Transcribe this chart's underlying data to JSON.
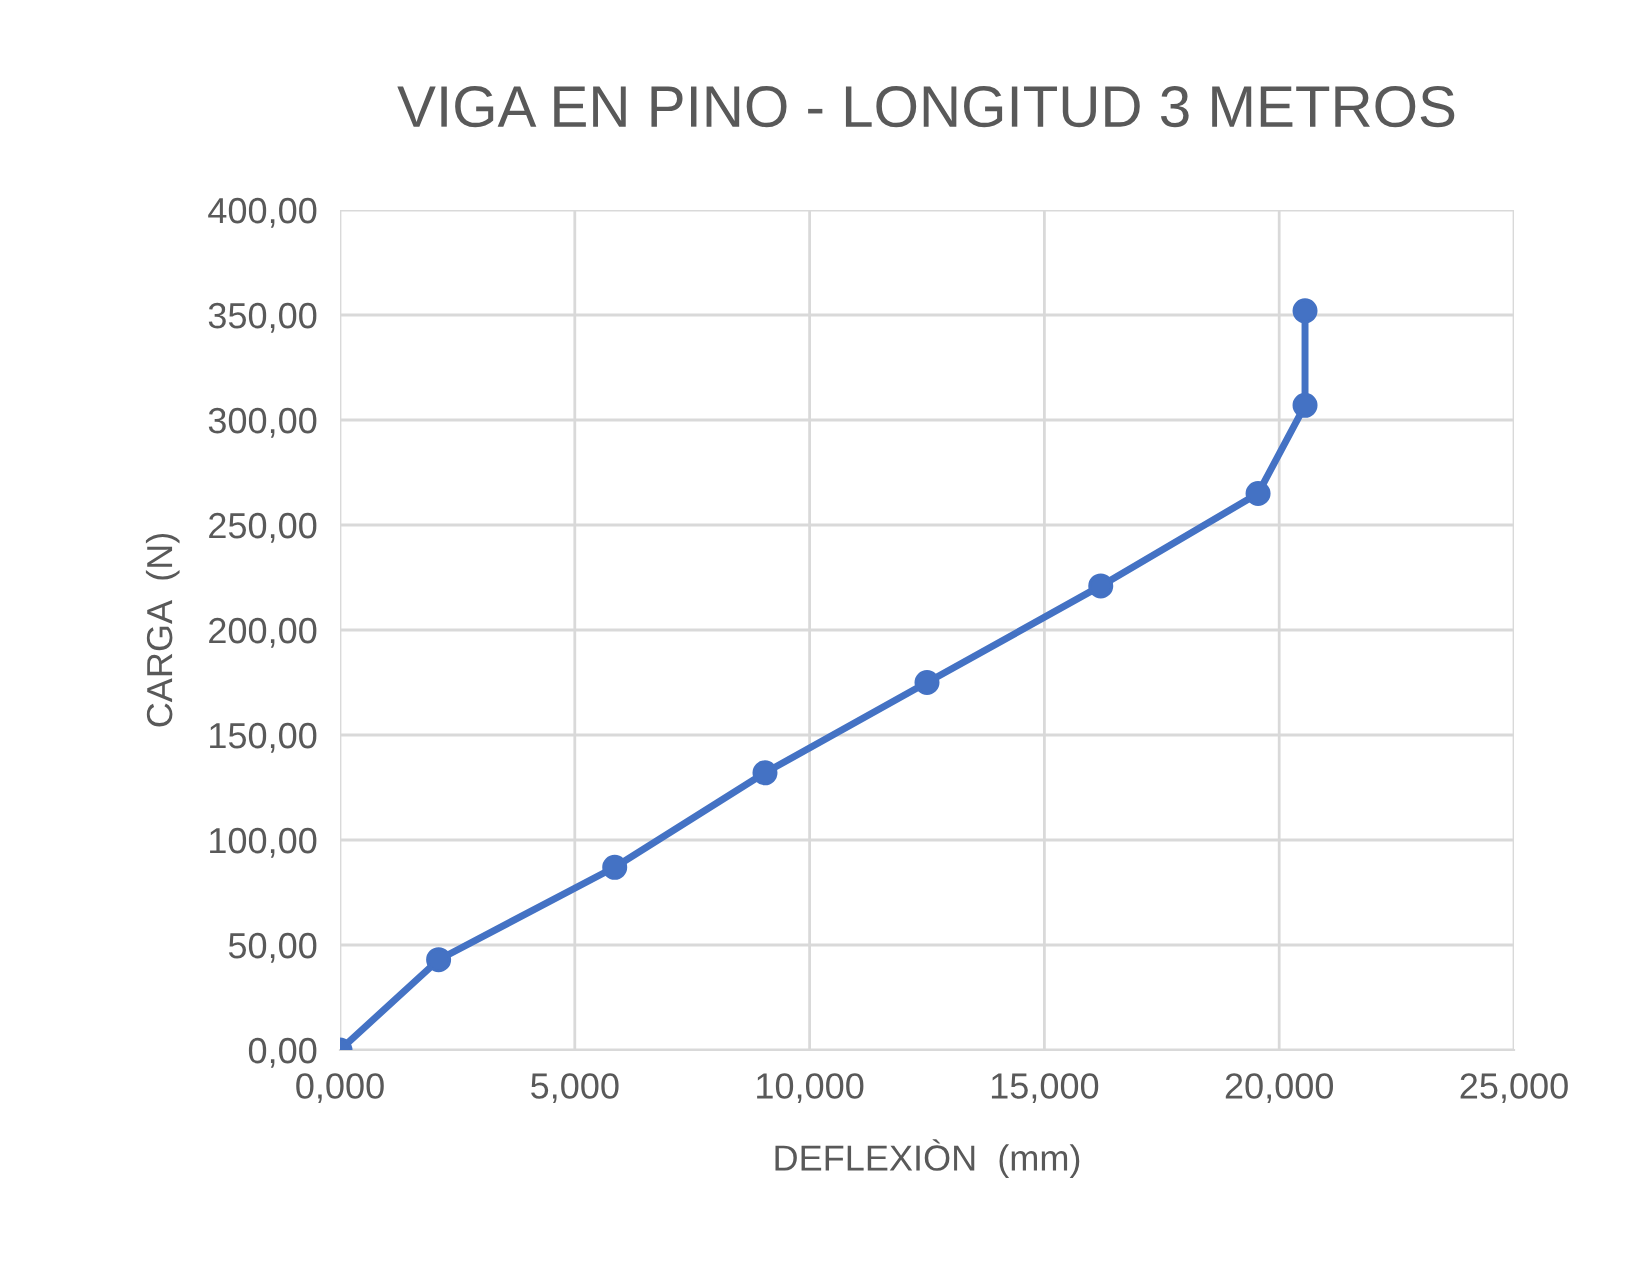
{
  "chart_data": {
    "type": "line",
    "title": "VIGA EN PINO - LONGITUD 3 METROS",
    "xlabel": "DEFLEXIÒN  (mm)",
    "ylabel": "CARGA  (N)",
    "series": [
      {
        "color": "#4472c4",
        "x": [
          0,
          2.1,
          5.85,
          9.05,
          12.5,
          16.2,
          19.55,
          20.55,
          20.55
        ],
        "values": [
          0,
          43,
          87,
          132,
          175,
          221,
          265,
          307,
          352
        ]
      }
    ],
    "xlim": [
      0,
      25
    ],
    "ylim": [
      0,
      400
    ],
    "xticks": [
      {
        "value": 0,
        "label": "0,000"
      },
      {
        "value": 5,
        "label": "5,000"
      },
      {
        "value": 10,
        "label": "10,000"
      },
      {
        "value": 15,
        "label": "15,000"
      },
      {
        "value": 20,
        "label": "20,000"
      },
      {
        "value": 25,
        "label": "25,000"
      }
    ],
    "yticks": [
      {
        "value": 0,
        "label": "0,00"
      },
      {
        "value": 50,
        "label": "50,00"
      },
      {
        "value": 100,
        "label": "100,00"
      },
      {
        "value": 150,
        "label": "150,00"
      },
      {
        "value": 200,
        "label": "200,00"
      },
      {
        "value": 250,
        "label": "250,00"
      },
      {
        "value": 300,
        "label": "300,00"
      },
      {
        "value": 350,
        "label": "350,00"
      },
      {
        "value": 400,
        "label": "400,00"
      }
    ],
    "grid": true,
    "marker": "circle",
    "line_style": "solid"
  }
}
